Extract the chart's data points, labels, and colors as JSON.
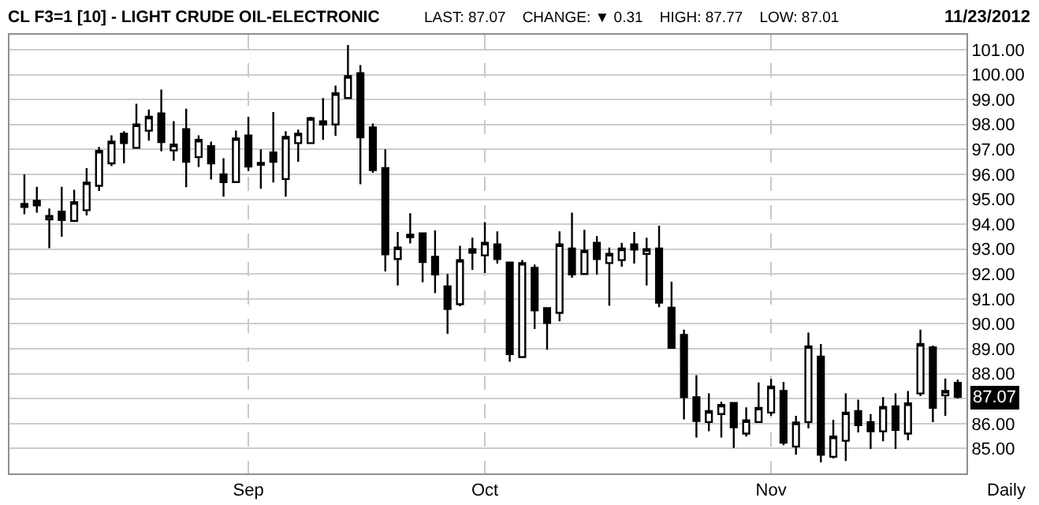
{
  "chart_data": {
    "type": "candlestick",
    "title": "CL F3=1 [10] - LIGHT CRUDE OIL-ELECTRONIC",
    "subtitle": "LAST: 87.07    CHANGE: ▼ 0.31    HIGH: 87.77    LOW: 87.01",
    "annotations": [
      "11/23/2012",
      "Daily",
      {
        "text": "87.07",
        "y": 87.07
      }
    ],
    "categories": [
      null,
      null,
      null,
      null,
      null,
      null,
      null,
      null,
      null,
      null,
      null,
      null,
      null,
      null,
      null,
      null,
      null,
      null,
      "Sep",
      null,
      null,
      null,
      null,
      null,
      null,
      null,
      null,
      null,
      null,
      null,
      null,
      null,
      null,
      null,
      null,
      null,
      null,
      "Oct",
      null,
      null,
      null,
      null,
      null,
      null,
      null,
      null,
      null,
      null,
      null,
      null,
      null,
      null,
      null,
      null,
      null,
      null,
      null,
      null,
      null,
      null,
      "Nov",
      null,
      null,
      null,
      null,
      null,
      null,
      null,
      null,
      null,
      null,
      null,
      null,
      null,
      null,
      null
    ],
    "series": [
      {
        "color": "#000000",
        "ohlc": [
          [
            94.69,
            96.0,
            94.4,
            94.81
          ],
          [
            94.94,
            95.5,
            94.46,
            94.75
          ],
          [
            94.19,
            94.63,
            93.04,
            94.33
          ],
          [
            94.5,
            95.5,
            93.5,
            94.17
          ],
          [
            94.13,
            95.38,
            94.13,
            94.88
          ],
          [
            94.56,
            96.25,
            94.35,
            95.67
          ],
          [
            95.54,
            97.1,
            95.33,
            96.94
          ],
          [
            96.44,
            97.56,
            96.33,
            97.31
          ],
          [
            97.63,
            97.73,
            96.44,
            97.25
          ],
          [
            97.06,
            98.83,
            97.06,
            98.0
          ],
          [
            97.75,
            98.6,
            97.35,
            98.31
          ],
          [
            98.44,
            99.4,
            96.92,
            97.29
          ],
          [
            96.96,
            98.13,
            96.54,
            97.19
          ],
          [
            97.81,
            98.63,
            95.48,
            96.5
          ],
          [
            96.69,
            97.56,
            96.29,
            97.38
          ],
          [
            97.13,
            97.31,
            95.79,
            96.44
          ],
          [
            96.0,
            96.65,
            95.1,
            95.69
          ],
          [
            95.69,
            97.75,
            95.69,
            97.44
          ],
          [
            97.56,
            98.31,
            96.13,
            96.31
          ],
          [
            96.46,
            97.0,
            95.42,
            96.38
          ],
          [
            96.88,
            98.5,
            95.67,
            96.5
          ],
          [
            95.81,
            97.73,
            95.1,
            97.5
          ],
          [
            97.25,
            97.79,
            96.5,
            97.63
          ],
          [
            97.25,
            98.31,
            97.25,
            98.25
          ],
          [
            98.13,
            99.06,
            97.38,
            98.0
          ],
          [
            98.0,
            99.56,
            97.54,
            99.25
          ],
          [
            99.06,
            101.19,
            99.06,
            99.94
          ],
          [
            100.06,
            100.38,
            95.6,
            97.48
          ],
          [
            97.88,
            98.04,
            96.06,
            96.17
          ],
          [
            96.25,
            97.0,
            92.1,
            92.79
          ],
          [
            92.6,
            93.69,
            91.54,
            93.06
          ],
          [
            93.58,
            94.44,
            93.23,
            93.48
          ],
          [
            93.63,
            93.63,
            91.67,
            92.48
          ],
          [
            92.69,
            93.75,
            91.23,
            91.98
          ],
          [
            91.5,
            92.0,
            89.6,
            90.6
          ],
          [
            90.79,
            93.13,
            90.71,
            92.56
          ],
          [
            93.0,
            93.46,
            92.17,
            92.85
          ],
          [
            92.75,
            94.08,
            92.04,
            93.25
          ],
          [
            93.19,
            93.71,
            92.42,
            92.6
          ],
          [
            92.46,
            92.46,
            88.48,
            88.79
          ],
          [
            88.67,
            92.56,
            88.67,
            92.44
          ],
          [
            92.25,
            92.38,
            89.79,
            90.54
          ],
          [
            90.63,
            90.63,
            88.96,
            90.04
          ],
          [
            90.44,
            93.71,
            90.1,
            93.19
          ],
          [
            93.02,
            94.46,
            91.85,
            91.98
          ],
          [
            92.0,
            93.77,
            92.0,
            92.94
          ],
          [
            93.25,
            93.52,
            91.98,
            92.6
          ],
          [
            92.44,
            93.06,
            90.73,
            92.81
          ],
          [
            92.56,
            93.25,
            92.29,
            93.02
          ],
          [
            93.19,
            93.69,
            92.42,
            92.98
          ],
          [
            92.81,
            93.46,
            91.54,
            93.0
          ],
          [
            93.02,
            93.94,
            90.67,
            90.85
          ],
          [
            90.65,
            91.69,
            89.04,
            89.04
          ],
          [
            89.56,
            89.77,
            86.17,
            87.06
          ],
          [
            87.06,
            87.94,
            85.44,
            86.1
          ],
          [
            86.06,
            87.21,
            85.69,
            86.5
          ],
          [
            86.38,
            86.88,
            85.44,
            86.75
          ],
          [
            86.83,
            86.83,
            85.02,
            85.85
          ],
          [
            85.6,
            86.65,
            85.48,
            86.13
          ],
          [
            86.06,
            87.65,
            86.06,
            86.63
          ],
          [
            86.44,
            87.79,
            86.31,
            87.48
          ],
          [
            87.31,
            87.67,
            85.13,
            85.23
          ],
          [
            85.08,
            86.31,
            84.75,
            86.04
          ],
          [
            86.06,
            89.65,
            85.81,
            89.1
          ],
          [
            88.69,
            89.19,
            84.44,
            84.75
          ],
          [
            84.67,
            86.15,
            84.6,
            85.48
          ],
          [
            85.31,
            87.21,
            84.5,
            86.44
          ],
          [
            86.5,
            86.96,
            85.65,
            85.94
          ],
          [
            86.06,
            86.38,
            84.98,
            85.69
          ],
          [
            85.69,
            87.06,
            85.29,
            86.67
          ],
          [
            86.69,
            87.21,
            84.98,
            85.75
          ],
          [
            85.6,
            87.31,
            85.33,
            86.81
          ],
          [
            87.21,
            89.77,
            87.1,
            89.19
          ],
          [
            89.06,
            89.13,
            86.06,
            86.63
          ],
          [
            87.13,
            87.81,
            86.31,
            87.31
          ],
          [
            87.63,
            87.77,
            87.01,
            87.07
          ]
        ]
      }
    ],
    "ylim": [
      84,
      101.6
    ],
    "yticks": [
      {
        "value": 85,
        "label": "85.00"
      },
      {
        "value": 86,
        "label": "86.00"
      },
      {
        "value": 87,
        "label": null
      },
      {
        "value": 88,
        "label": "88.00"
      },
      {
        "value": 89,
        "label": "89.00"
      },
      {
        "value": 90,
        "label": "90.00"
      },
      {
        "value": 91,
        "label": "91.00"
      },
      {
        "value": 92,
        "label": "92.00"
      },
      {
        "value": 93,
        "label": "93.00"
      },
      {
        "value": 94,
        "label": "94.00"
      },
      {
        "value": 95,
        "label": "95.00"
      },
      {
        "value": 96,
        "label": "96.00"
      },
      {
        "value": 97,
        "label": "97.00"
      },
      {
        "value": 98,
        "label": "98.00"
      },
      {
        "value": 99,
        "label": "99.00"
      },
      {
        "value": 100,
        "label": "100.00"
      },
      {
        "value": 101,
        "label": "101.00"
      }
    ],
    "grid": true
  }
}
